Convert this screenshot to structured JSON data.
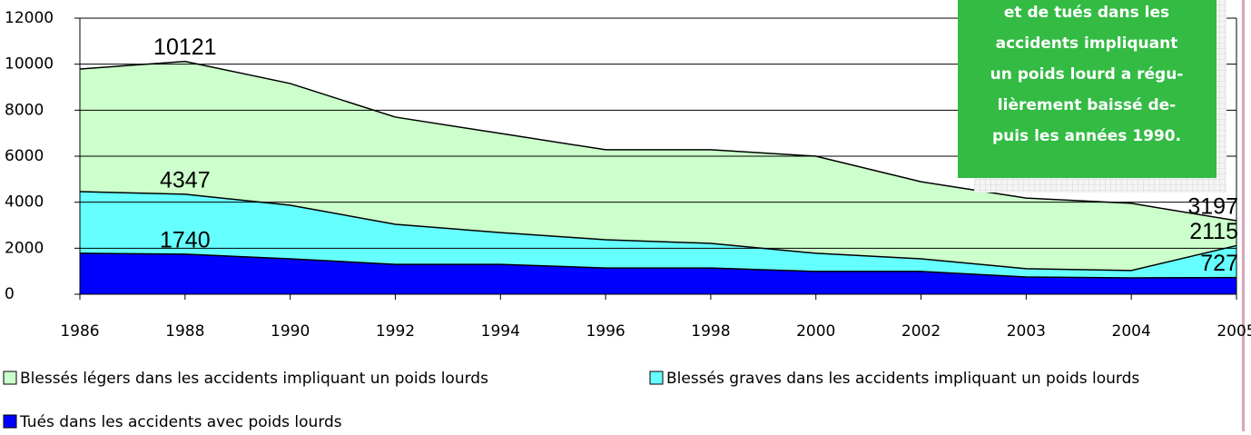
{
  "chart_data": {
    "type": "area",
    "categories": [
      "1986",
      "1988",
      "1990",
      "1992",
      "1994",
      "1996",
      "1998",
      "2000",
      "2002",
      "2003",
      "2004",
      "2005"
    ],
    "series": [
      {
        "name": "Blessés légers dans les accidents impliquant un poids lourds",
        "color": "#ccffcc",
        "values": [
          9790,
          10121,
          9160,
          7700,
          6990,
          6280,
          6280,
          6000,
          4890,
          4180,
          3950,
          3197
        ]
      },
      {
        "name": "Blessés graves dans les accidents impliquant un poids lourds",
        "color": "#66ffff",
        "values": [
          4460,
          4347,
          3870,
          3040,
          2680,
          2370,
          2210,
          1780,
          1540,
          1110,
          1030,
          2115
        ]
      },
      {
        "name": "Tués dans les accidents avec poids lourds",
        "color": "#0000ff",
        "values": [
          1780,
          1740,
          1540,
          1300,
          1300,
          1140,
          1140,
          990,
          990,
          750,
          710,
          727
        ]
      }
    ],
    "data_labels": [
      1,
      11
    ],
    "ylim": [
      0,
      12000
    ],
    "yticks": [
      0,
      2000,
      4000,
      6000,
      8000,
      10000,
      12000
    ],
    "grid": true,
    "annotation": [
      "et de tués dans les",
      "accidents impliquant",
      "un poids lourd a régu-",
      "lièrement baissé de-",
      "puis les années 1990."
    ]
  }
}
